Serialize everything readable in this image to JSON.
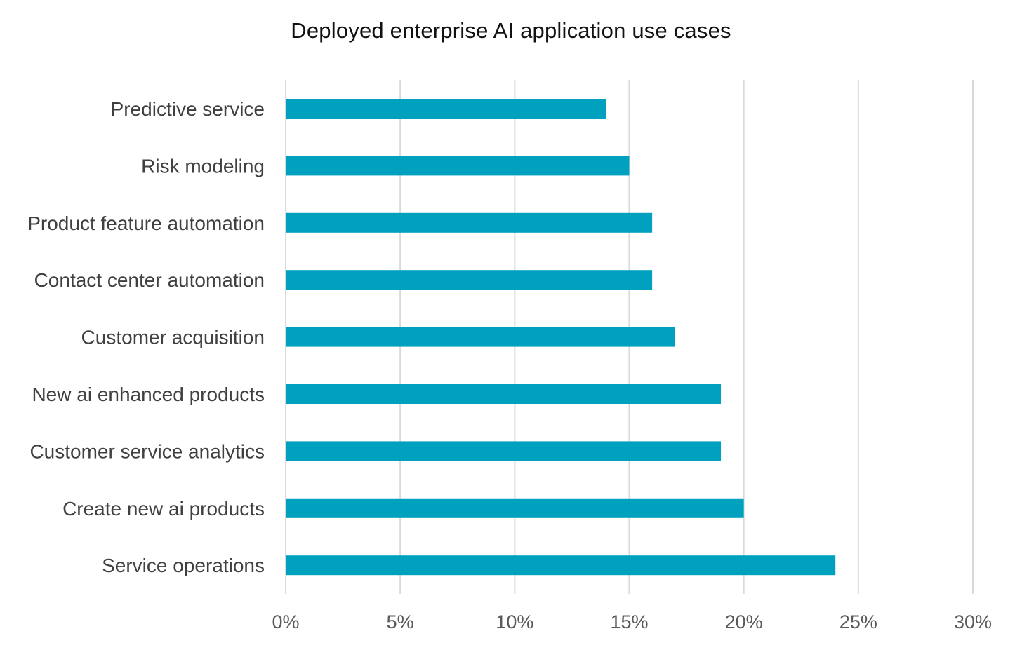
{
  "chart_data": {
    "type": "bar",
    "orientation": "horizontal",
    "title": "Deployed enterprise AI application use cases",
    "xlabel": "",
    "ylabel": "",
    "categories": [
      "Predictive service",
      "Risk modeling",
      "Product feature automation",
      "Contact center automation",
      "Customer acquisition",
      "New ai enhanced products",
      "Customer service analytics",
      "Create new ai products",
      "Service operations"
    ],
    "values": [
      14,
      15,
      16,
      16,
      17,
      19,
      19,
      20,
      24
    ],
    "xlim": [
      0,
      30
    ],
    "xticks": [
      0,
      5,
      10,
      15,
      20,
      25,
      30
    ],
    "xtick_labels": [
      "0%",
      "5%",
      "10%",
      "15%",
      "20%",
      "25%",
      "30%"
    ],
    "grid": "vertical",
    "legend": "none",
    "bar_color": "#00a1bf",
    "grid_color": "#d9d9d9"
  }
}
